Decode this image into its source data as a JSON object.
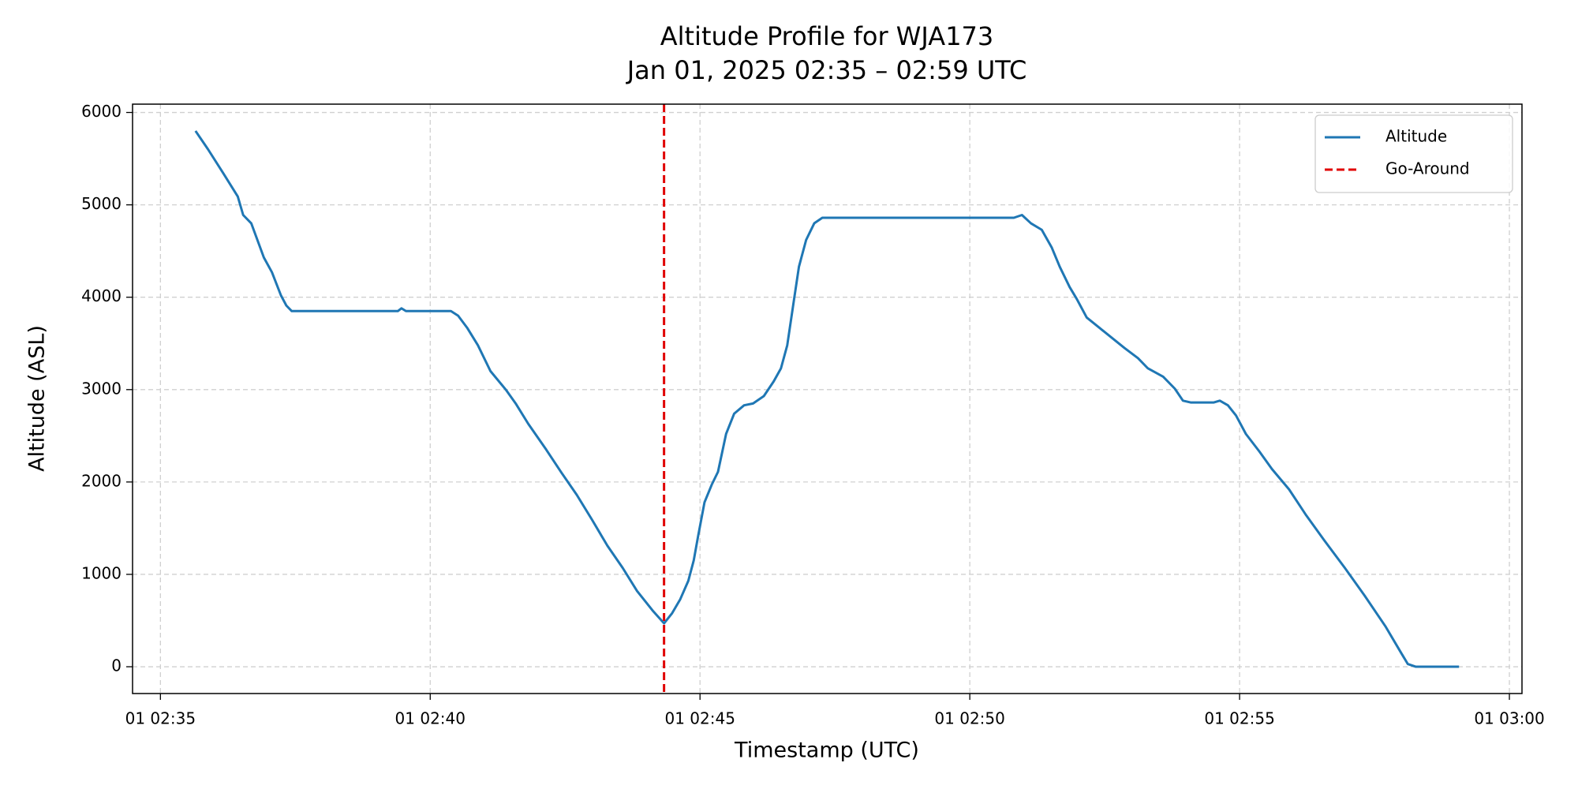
{
  "chart_data": {
    "type": "line",
    "title": "Altitude Profile for WJA173",
    "subtitle": "Jan 01, 2025 02:35 – 02:59 UTC",
    "xlabel": "Timestamp (UTC)",
    "ylabel": "Altitude (ASL)",
    "x": [
      "01 02:35:39",
      "01 02:35:53",
      "01 02:36:10",
      "01 02:36:26",
      "01 02:36:32",
      "01 02:36:41",
      "01 02:36:55",
      "01 02:37:04",
      "01 02:37:14",
      "01 02:37:20",
      "01 02:37:26",
      "01 02:39:24",
      "01 02:39:28",
      "01 02:39:33",
      "01 02:40:23",
      "01 02:40:31",
      "01 02:40:41",
      "01 02:40:53",
      "01 02:41:07",
      "01 02:41:24",
      "01 02:41:35",
      "01 02:41:49",
      "01 02:42:09",
      "01 02:42:26",
      "01 02:42:43",
      "01 02:43:00",
      "01 02:43:17",
      "01 02:43:34",
      "01 02:43:50",
      "01 02:44:08",
      "01 02:44:20",
      "01 02:44:29",
      "01 02:44:38",
      "01 02:44:47",
      "01 02:44:53",
      "01 02:44:58",
      "01 02:45:05",
      "01 02:45:13",
      "01 02:45:20",
      "01 02:45:29",
      "01 02:45:38",
      "01 02:45:49",
      "01 02:45:59",
      "01 02:46:11",
      "01 02:46:22",
      "01 02:46:30",
      "01 02:46:37",
      "01 02:46:44",
      "01 02:46:50",
      "01 02:46:58",
      "01 02:47:07",
      "01 02:47:16",
      "01 02:50:49",
      "01 02:50:58",
      "01 02:51:08",
      "01 02:51:20",
      "01 02:51:31",
      "01 02:51:40",
      "01 02:51:51",
      "01 02:51:59",
      "01 02:52:10",
      "01 02:52:24",
      "01 02:52:38",
      "01 02:52:52",
      "01 02:53:07",
      "01 02:53:18",
      "01 02:53:35",
      "01 02:53:48",
      "01 02:53:57",
      "01 02:54:06",
      "01 02:54:31",
      "01 02:54:38",
      "01 02:54:47",
      "01 02:54:56",
      "01 02:55:07",
      "01 02:55:22",
      "01 02:55:36",
      "01 02:55:55",
      "01 02:56:14",
      "01 02:56:34",
      "01 02:56:57",
      "01 02:57:19",
      "01 02:57:42",
      "01 02:57:59",
      "01 02:58:07",
      "01 02:58:16",
      "01 02:59:04"
    ],
    "series": [
      {
        "name": "Altitude",
        "color": "#1f77b4",
        "values": [
          5800,
          5600,
          5340,
          5090,
          4890,
          4800,
          4430,
          4270,
          4020,
          3910,
          3850,
          3850,
          3880,
          3850,
          3850,
          3800,
          3670,
          3480,
          3200,
          3000,
          2850,
          2630,
          2350,
          2100,
          1860,
          1590,
          1310,
          1070,
          820,
          600,
          470,
          580,
          730,
          930,
          1150,
          1420,
          1780,
          1970,
          2110,
          2520,
          2740,
          2830,
          2850,
          2930,
          3090,
          3230,
          3480,
          3940,
          4330,
          4620,
          4800,
          4860,
          4860,
          4890,
          4800,
          4730,
          4540,
          4330,
          4110,
          3980,
          3780,
          3670,
          3560,
          3450,
          3340,
          3230,
          3140,
          3010,
          2880,
          2860,
          2860,
          2880,
          2830,
          2720,
          2520,
          2330,
          2140,
          1920,
          1640,
          1370,
          1070,
          770,
          440,
          160,
          30,
          0,
          0
        ]
      }
    ],
    "vline": {
      "name": "Go-Around",
      "x": "01 02:44:20",
      "color": "#e00000"
    },
    "xlim": [
      "01 02:34:29",
      "01 03:00:14"
    ],
    "xticks": [
      "01 02:35",
      "01 02:40",
      "01 02:45",
      "01 02:50",
      "01 02:55",
      "01 03:00"
    ],
    "ylim": [
      -290,
      6090
    ],
    "yticks": [
      0,
      1000,
      2000,
      3000,
      4000,
      5000,
      6000
    ],
    "grid": true,
    "legend": "upper right"
  }
}
